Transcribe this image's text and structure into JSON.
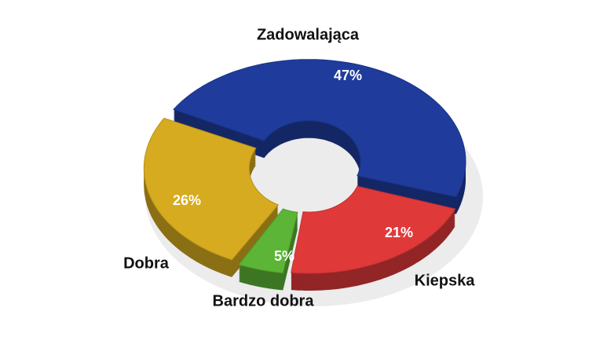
{
  "chart_data": {
    "type": "donut",
    "categories": [
      "Zadowalająca",
      "Kiepska",
      "Bardzo dobra",
      "Dobra"
    ],
    "values": [
      47,
      21,
      5,
      26
    ],
    "value_labels": [
      "47%",
      "21%",
      "5%",
      "26%"
    ],
    "colors": [
      "#1f3c9c",
      "#e0393a",
      "#5cb536",
      "#d6ab1f"
    ]
  }
}
